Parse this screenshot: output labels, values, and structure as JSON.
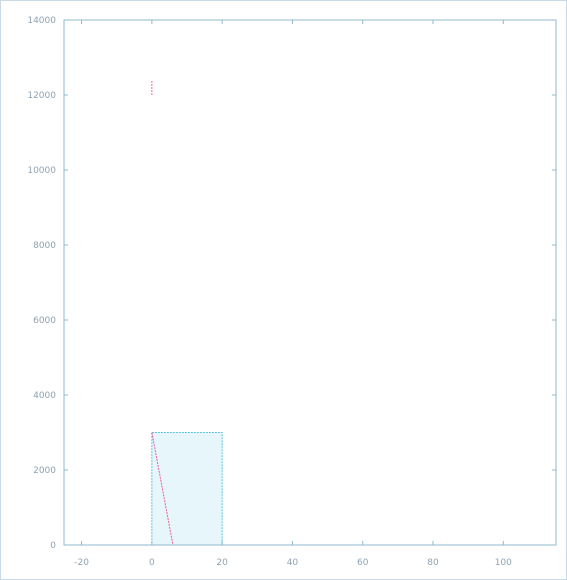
{
  "chart_data": {
    "type": "bar",
    "title": "",
    "xlabel": "",
    "ylabel": "",
    "xlim": [
      -25,
      115
    ],
    "ylim": [
      0,
      14000
    ],
    "x_ticks": [
      -20,
      0,
      20,
      40,
      60,
      80,
      100
    ],
    "x_tick_labels": [
      "-20",
      "0",
      "20",
      "40",
      "60",
      "80",
      "100"
    ],
    "y_ticks": [
      0,
      2000,
      4000,
      6000,
      8000,
      10000,
      12000,
      14000
    ],
    "y_tick_labels": [
      "0",
      "2000",
      "4000",
      "6000",
      "8000",
      "10000",
      "12000",
      "14000"
    ],
    "grid": false,
    "colors": {
      "axes": "#8fb8cc",
      "bar_fill": "#e6f6fb",
      "bar_edge": "#5ec4dd",
      "line": "#e83a8c",
      "text": "#8ea2b3"
    },
    "bars": [
      {
        "x_start": 0,
        "x_end": 20,
        "value": 3000
      }
    ],
    "series": [
      {
        "type": "line",
        "x": [
          0,
          1,
          2,
          3,
          4,
          5,
          6
        ],
        "y": [
          3000,
          2500,
          2000,
          1500,
          1000,
          500,
          0
        ]
      },
      {
        "type": "line",
        "x": [
          0,
          0
        ],
        "y": [
          12000,
          12400
        ]
      }
    ]
  }
}
